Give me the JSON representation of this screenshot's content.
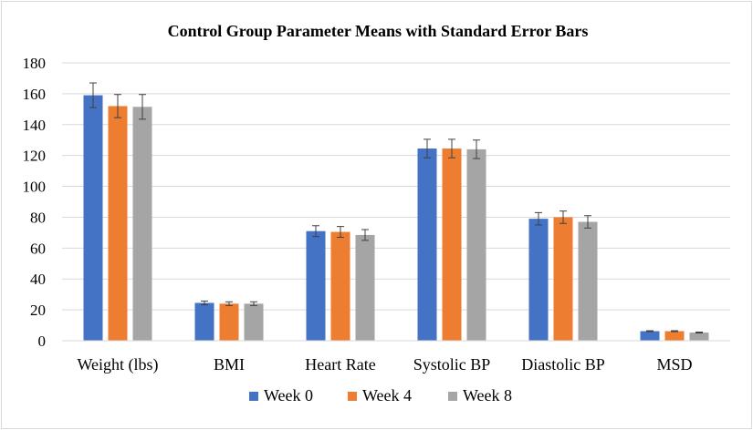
{
  "chart_data": {
    "type": "bar",
    "title": "Control Group Parameter Means with Standard Error Bars",
    "categories": [
      "Weight (lbs)",
      "BMI",
      "Heart Rate",
      "Systolic BP",
      "Diastolic BP",
      "MSD"
    ],
    "ylim": [
      0,
      180
    ],
    "yticks": [
      0,
      20,
      40,
      60,
      80,
      100,
      120,
      140,
      160,
      180
    ],
    "grid": true,
    "legend_position": "bottom",
    "series": [
      {
        "name": "Week 0",
        "color": "#4472c4",
        "values": [
          159,
          24.5,
          71,
          124.5,
          79,
          6.2
        ],
        "errors": [
          8,
          1.2,
          3.5,
          6,
          4,
          0.3
        ]
      },
      {
        "name": "Week 4",
        "color": "#ed7d31",
        "values": [
          152,
          24,
          70.5,
          124.5,
          80,
          6.2
        ],
        "errors": [
          7.5,
          1.2,
          3.5,
          6,
          4,
          0.3
        ]
      },
      {
        "name": "Week 8",
        "color": "#a5a5a5",
        "values": [
          151.5,
          24,
          68.5,
          124,
          77,
          5.3
        ],
        "errors": [
          8,
          1.2,
          3.5,
          6,
          4,
          0.3
        ]
      }
    ]
  }
}
